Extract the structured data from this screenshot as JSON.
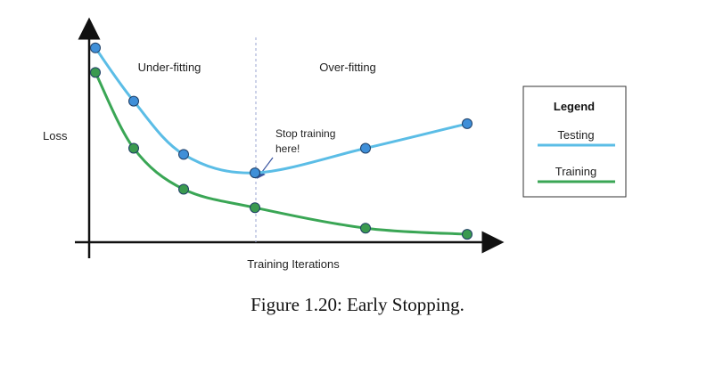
{
  "caption": "Figure 1.20: Early Stopping.",
  "chart_data": {
    "type": "line",
    "title": "",
    "xlabel": "Training Iterations",
    "ylabel": "Loss",
    "regions": [
      "Under-fitting",
      "Over-fitting"
    ],
    "annotation": {
      "line1": "Stop training",
      "line2": "here!",
      "series": "Testing",
      "point_index": 3
    },
    "legend": {
      "title": "Legend",
      "placement": "right"
    },
    "x": [
      0,
      1,
      2,
      3,
      4,
      5
    ],
    "series": [
      {
        "name": "Testing",
        "color": "#5bbde6",
        "marker": "#3f8fd8",
        "values": [
          0.94,
          0.68,
          0.42,
          0.33,
          0.45,
          0.57
        ]
      },
      {
        "name": "Training",
        "color": "#3aa655",
        "marker": "#3a9a4f",
        "values": [
          0.82,
          0.45,
          0.25,
          0.16,
          0.06,
          0.03
        ]
      }
    ],
    "grid": false
  }
}
